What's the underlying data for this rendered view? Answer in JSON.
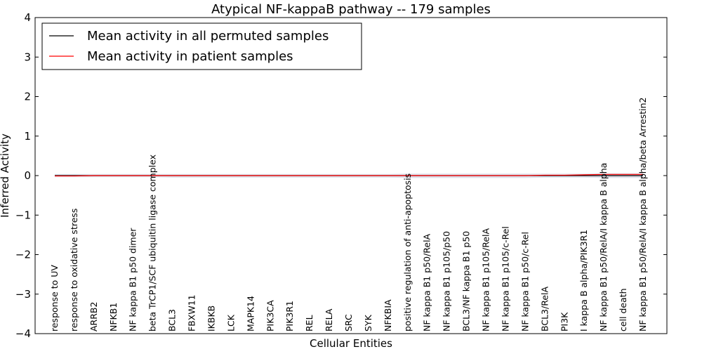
{
  "chart_data": {
    "type": "line",
    "title": "Atypical NF-kappaB pathway -- 179 samples",
    "xlabel": "Cellular Entities",
    "ylabel": "Inferred Activity",
    "ylim": [
      -4,
      4
    ],
    "yticks": [
      -4,
      -3,
      -2,
      -1,
      0,
      1,
      2,
      3,
      4
    ],
    "ytick_labels": [
      "−4",
      "−3",
      "−2",
      "−1",
      "0",
      "1",
      "2",
      "3",
      "4"
    ],
    "legend": {
      "placement": "top-left"
    },
    "categories": [
      "response to UV",
      "response to oxidative stress",
      "ARRB2",
      "NFKB1",
      "NF kappa B1 p50 dimer",
      "beta TrCP1/SCF ubiquitin ligase complex",
      "BCL3",
      "FBXW11",
      "IKBKB",
      "LCK",
      "MAPK14",
      "PIK3CA",
      "PIK3R1",
      "REL",
      "RELA",
      "SRC",
      "SYK",
      "NFKBIA",
      "positive regulation of anti-apoptosis",
      "NF kappa B1 p50/RelA",
      "NF kappa B1 p105/p50",
      "BCL3/NF kappa B1 p50",
      "NF kappa B1 p105/RelA",
      "NF kappa B1 p105/c-Rel",
      "NF kappa B1 p50/c-Rel",
      "BCL3/RelA",
      "PI3K",
      "I kappa B alpha/PIK3R1",
      "NF kappa B1 p50/RelA/I kappa B alpha",
      "cell death",
      "NF kappa B1 p50/RelA/I kappa B alpha/beta Arrestin2"
    ],
    "series": [
      {
        "name": "Mean activity in all permuted samples",
        "color": "#000000",
        "values": [
          0.0,
          0.0,
          0.0,
          0.0,
          0.0,
          0.0,
          0.0,
          0.0,
          0.0,
          0.0,
          0.0,
          0.0,
          0.0,
          0.0,
          0.0,
          0.0,
          0.0,
          0.0,
          0.0,
          0.0,
          0.0,
          0.0,
          0.0,
          0.0,
          0.0,
          0.0,
          0.0,
          0.0,
          0.0,
          0.0,
          0.0
        ]
      },
      {
        "name": "Mean activity in patient samples",
        "color": "#ff0000",
        "values": [
          -0.01,
          -0.01,
          0.0,
          0.0,
          0.0,
          0.0,
          0.0,
          0.0,
          0.0,
          0.0,
          0.0,
          0.0,
          0.0,
          0.0,
          0.0,
          0.0,
          0.0,
          0.0,
          0.0,
          0.0,
          0.0,
          0.0,
          0.0,
          0.0,
          0.0,
          0.01,
          0.01,
          0.02,
          0.03,
          0.03,
          0.03
        ]
      }
    ],
    "band": {
      "color": "#c8c8d8",
      "upper": [
        0.04,
        0.04,
        0.04,
        0.04,
        0.04,
        0.04,
        0.04,
        0.04,
        0.04,
        0.04,
        0.04,
        0.04,
        0.04,
        0.04,
        0.04,
        0.04,
        0.04,
        0.04,
        0.05,
        0.05,
        0.05,
        0.05,
        0.05,
        0.05,
        0.05,
        0.05,
        0.05,
        0.05,
        0.06,
        0.06,
        0.06
      ],
      "lower": [
        -0.04,
        -0.04,
        -0.04,
        -0.04,
        -0.04,
        -0.04,
        -0.05,
        -0.05,
        -0.05,
        -0.05,
        -0.05,
        -0.05,
        -0.05,
        -0.05,
        -0.05,
        -0.05,
        -0.05,
        -0.05,
        -0.06,
        -0.06,
        -0.06,
        -0.06,
        -0.06,
        -0.06,
        -0.06,
        -0.05,
        -0.05,
        -0.05,
        -0.06,
        -0.06,
        -0.06
      ]
    }
  }
}
